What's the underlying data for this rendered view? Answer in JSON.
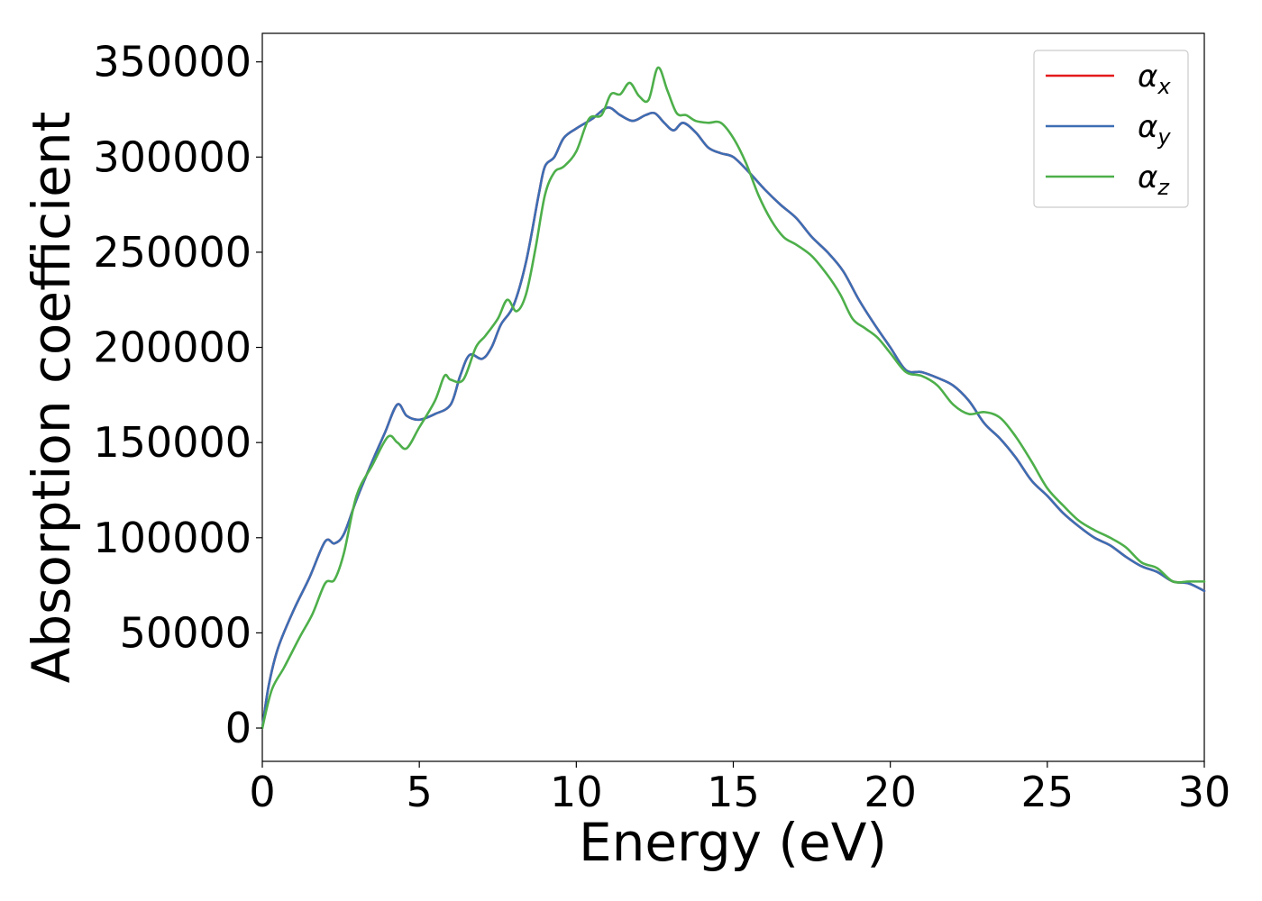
{
  "chart_data": {
    "type": "line",
    "title": "",
    "xlabel": "Energy (eV)",
    "ylabel": "Absorption coefficient",
    "xlim": [
      0,
      30
    ],
    "ylim": [
      -17500,
      365000
    ],
    "x_ticks": [
      0,
      5,
      10,
      15,
      20,
      25,
      30
    ],
    "y_ticks": [
      0,
      50000,
      100000,
      150000,
      200000,
      250000,
      300000,
      350000
    ],
    "grid": false,
    "legend_position": "top-right",
    "series": [
      {
        "name": "α_x",
        "legend_base": "α",
        "legend_sub": "x",
        "color": "#e41a1c",
        "x": [
          0,
          0.2,
          0.5,
          1.0,
          1.5,
          2.0,
          2.3,
          2.6,
          3.0,
          3.5,
          3.9,
          4.3,
          4.6,
          5.0,
          5.5,
          6.0,
          6.3,
          6.6,
          7.0,
          7.3,
          7.6,
          8.0,
          8.4,
          8.8,
          9.0,
          9.3,
          9.6,
          10.0,
          10.5,
          11.0,
          11.4,
          11.8,
          12.2,
          12.5,
          12.8,
          13.1,
          13.4,
          13.8,
          14.2,
          14.6,
          15.0,
          15.5,
          16.0,
          16.5,
          17.0,
          17.5,
          18.0,
          18.5,
          19.0,
          19.5,
          20.0,
          20.5,
          21.0,
          21.5,
          22.0,
          22.5,
          23.0,
          23.5,
          24.0,
          24.5,
          25.0,
          25.5,
          26.0,
          26.5,
          27.0,
          27.5,
          28.0,
          28.5,
          29.0,
          29.5,
          30.0
        ],
        "values": [
          0,
          22000,
          42000,
          62000,
          79000,
          98000,
          97000,
          102000,
          120000,
          140000,
          155000,
          170000,
          164000,
          162000,
          165000,
          170000,
          185000,
          196000,
          194000,
          200000,
          212000,
          222000,
          245000,
          280000,
          295000,
          300000,
          310000,
          315000,
          320000,
          326000,
          322000,
          319000,
          322000,
          323000,
          318000,
          314000,
          318000,
          313000,
          305000,
          302000,
          300000,
          292000,
          283000,
          275000,
          268000,
          258000,
          250000,
          240000,
          225000,
          212000,
          200000,
          188000,
          187000,
          184000,
          180000,
          172000,
          160000,
          152000,
          142000,
          130000,
          122000,
          113000,
          106000,
          100000,
          96000,
          90000,
          85000,
          82000,
          77000,
          76000,
          72000
        ]
      },
      {
        "name": "α_y",
        "legend_base": "α",
        "legend_sub": "y",
        "color": "#3c6eb4",
        "x": [
          0,
          0.2,
          0.5,
          1.0,
          1.5,
          2.0,
          2.3,
          2.6,
          3.0,
          3.5,
          3.9,
          4.3,
          4.6,
          5.0,
          5.5,
          6.0,
          6.3,
          6.6,
          7.0,
          7.3,
          7.6,
          8.0,
          8.4,
          8.8,
          9.0,
          9.3,
          9.6,
          10.0,
          10.5,
          11.0,
          11.4,
          11.8,
          12.2,
          12.5,
          12.8,
          13.1,
          13.4,
          13.8,
          14.2,
          14.6,
          15.0,
          15.5,
          16.0,
          16.5,
          17.0,
          17.5,
          18.0,
          18.5,
          19.0,
          19.5,
          20.0,
          20.5,
          21.0,
          21.5,
          22.0,
          22.5,
          23.0,
          23.5,
          24.0,
          24.5,
          25.0,
          25.5,
          26.0,
          26.5,
          27.0,
          27.5,
          28.0,
          28.5,
          29.0,
          29.5,
          30.0
        ],
        "values": [
          0,
          22000,
          42000,
          62000,
          79000,
          98000,
          97000,
          102000,
          120000,
          140000,
          155000,
          170000,
          164000,
          162000,
          165000,
          170000,
          185000,
          196000,
          194000,
          200000,
          212000,
          222000,
          245000,
          280000,
          295000,
          300000,
          310000,
          315000,
          320000,
          326000,
          322000,
          319000,
          322000,
          323000,
          318000,
          314000,
          318000,
          313000,
          305000,
          302000,
          300000,
          292000,
          283000,
          275000,
          268000,
          258000,
          250000,
          240000,
          225000,
          212000,
          200000,
          188000,
          187000,
          184000,
          180000,
          172000,
          160000,
          152000,
          142000,
          130000,
          122000,
          113000,
          106000,
          100000,
          96000,
          90000,
          85000,
          82000,
          77000,
          76000,
          72000
        ]
      },
      {
        "name": "α_z",
        "legend_base": "α",
        "legend_sub": "z",
        "color": "#4daf4a",
        "x": [
          0,
          0.3,
          0.7,
          1.2,
          1.6,
          2.0,
          2.3,
          2.6,
          3.0,
          3.5,
          4.0,
          4.3,
          4.6,
          5.0,
          5.5,
          5.8,
          6.0,
          6.4,
          6.8,
          7.1,
          7.5,
          7.8,
          8.1,
          8.4,
          8.7,
          9.0,
          9.3,
          9.6,
          10.0,
          10.4,
          10.8,
          11.1,
          11.4,
          11.7,
          12.0,
          12.3,
          12.6,
          12.9,
          13.2,
          13.5,
          13.8,
          14.2,
          14.6,
          15.0,
          15.4,
          15.8,
          16.2,
          16.6,
          17.0,
          17.5,
          18.0,
          18.4,
          18.8,
          19.2,
          19.6,
          20.0,
          20.5,
          21.0,
          21.5,
          22.0,
          22.5,
          23.0,
          23.5,
          24.0,
          24.5,
          25.0,
          25.5,
          26.0,
          26.5,
          27.0,
          27.5,
          28.0,
          28.5,
          29.0,
          29.5,
          30.0
        ],
        "values": [
          0,
          20000,
          32000,
          48000,
          60000,
          76000,
          78000,
          92000,
          122000,
          138000,
          153000,
          150000,
          147000,
          158000,
          172000,
          185000,
          183000,
          183000,
          200000,
          206000,
          215000,
          225000,
          219000,
          228000,
          252000,
          280000,
          292000,
          295000,
          303000,
          320000,
          322000,
          333000,
          333000,
          339000,
          332000,
          330000,
          347000,
          335000,
          323000,
          322000,
          319000,
          318000,
          318000,
          310000,
          297000,
          280000,
          267000,
          258000,
          254000,
          248000,
          238000,
          228000,
          215000,
          210000,
          205000,
          197000,
          187000,
          185000,
          180000,
          170000,
          165000,
          166000,
          163000,
          153000,
          140000,
          126000,
          117000,
          109000,
          104000,
          100000,
          95000,
          87000,
          84000,
          77000,
          77000,
          77000
        ]
      }
    ]
  }
}
